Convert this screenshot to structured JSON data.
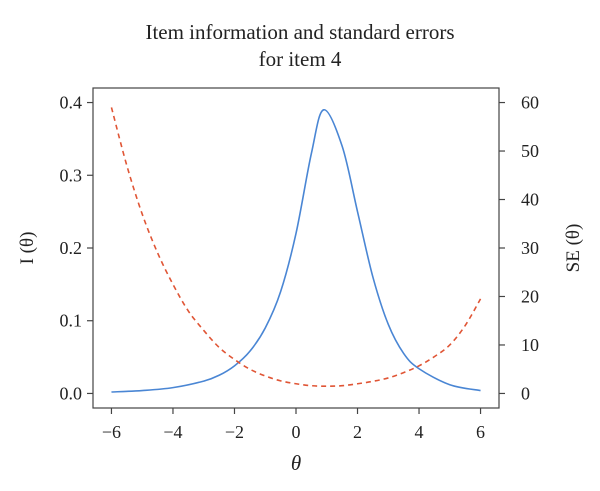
{
  "chart_data": {
    "type": "line",
    "title": [
      "Item information and standard errors",
      "for item 4"
    ],
    "xlabel": "θ",
    "ylabel_left": "I (θ)",
    "ylabel_right": "SE (θ)",
    "xlim": [
      -6.6,
      6.6
    ],
    "ylim_left": [
      -0.02,
      0.42
    ],
    "ylim_right": [
      -3,
      63
    ],
    "x_ticks": [
      -6,
      -4,
      -2,
      0,
      2,
      4,
      6
    ],
    "x_tick_labels": [
      "−6",
      "−4",
      "−2",
      "0",
      "2",
      "4",
      "6"
    ],
    "y_left_ticks": [
      0.0,
      0.1,
      0.2,
      0.3,
      0.4
    ],
    "y_left_tick_labels": [
      "0.0",
      "0.1",
      "0.2",
      "0.3",
      "0.4"
    ],
    "y_right_ticks": [
      0,
      10,
      20,
      30,
      40,
      50,
      60
    ],
    "y_right_tick_labels": [
      "0",
      "10",
      "20",
      "30",
      "40",
      "50",
      "60"
    ],
    "grid": false,
    "series": [
      {
        "axis": "left",
        "style": "solid",
        "color": "#4a86d4",
        "x": [
          -6,
          -5,
          -4,
          -3,
          -2.5,
          -2,
          -1.5,
          -1,
          -0.5,
          0,
          0.5,
          0.9,
          1.5,
          2,
          2.5,
          3,
          3.5,
          4,
          5,
          6
        ],
        "y": [
          0.002,
          0.004,
          0.008,
          0.017,
          0.025,
          0.038,
          0.058,
          0.09,
          0.14,
          0.22,
          0.33,
          0.39,
          0.34,
          0.25,
          0.16,
          0.095,
          0.055,
          0.034,
          0.012,
          0.004
        ]
      },
      {
        "axis": "right",
        "style": "dashed",
        "color": "#e05535",
        "x": [
          -6,
          -5.5,
          -5,
          -4.5,
          -4,
          -3.5,
          -3,
          -2.5,
          -2,
          -1.5,
          -1,
          -0.5,
          0,
          0.5,
          1,
          1.5,
          2,
          2.5,
          3,
          3.5,
          4,
          4.5,
          5,
          5.5,
          6
        ],
        "y": [
          59,
          47,
          37,
          29,
          22.5,
          17,
          13,
          9.5,
          7,
          5,
          3.6,
          2.6,
          2,
          1.6,
          1.5,
          1.6,
          2.0,
          2.5,
          3.2,
          4.3,
          5.7,
          7.6,
          10,
          14,
          19.5
        ]
      }
    ]
  }
}
